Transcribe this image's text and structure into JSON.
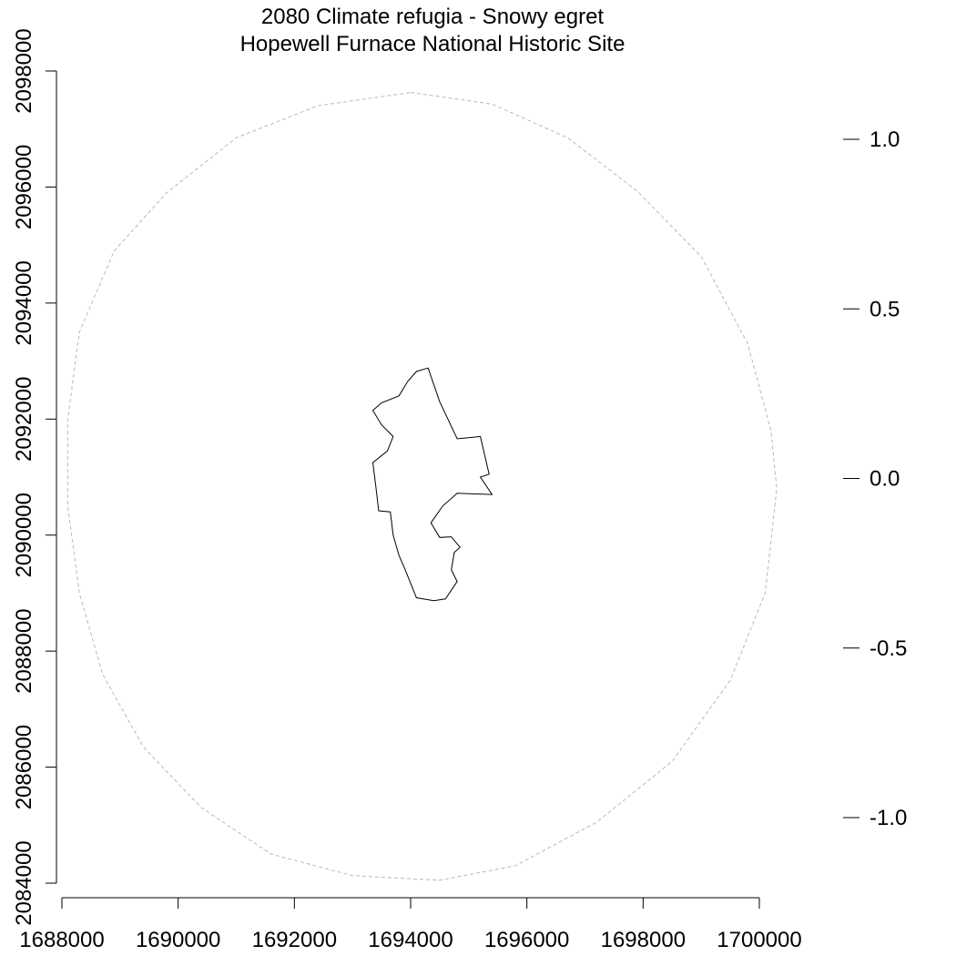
{
  "chart_data": {
    "type": "map",
    "title": [
      "2080 Climate refugia - Snowy egret",
      "Hopewell Furnace National Historic Site"
    ],
    "x_axis": {
      "range": [
        1688000,
        1700000
      ],
      "ticks": [
        1688000,
        1690000,
        1692000,
        1694000,
        1696000,
        1698000,
        1700000
      ],
      "tick_labels": [
        "1688000",
        "1690000",
        "1692000",
        "1694000",
        "1696000",
        "1698000",
        "1700000"
      ]
    },
    "y_axis": {
      "range": [
        2084000,
        2098000
      ],
      "ticks": [
        2084000,
        2086000,
        2088000,
        2090000,
        2092000,
        2094000,
        2096000,
        2098000
      ],
      "tick_labels": [
        "2084000",
        "2086000",
        "2088000",
        "2090000",
        "2092000",
        "2094000",
        "2096000",
        "2098000"
      ]
    },
    "legend_scale": {
      "ticks": [
        1.0,
        0.5,
        0.0,
        -0.5,
        -1.0
      ],
      "tick_labels": [
        "1.0",
        "0.5",
        "0.0",
        "-0.5",
        "-1.0"
      ]
    },
    "buffer_ring": {
      "style": "dashed",
      "color": "#b8b8b8",
      "points": [
        [
          1694000,
          2097630
        ],
        [
          1695400,
          2097430
        ],
        [
          1696700,
          2096850
        ],
        [
          1697900,
          2095930
        ],
        [
          1699000,
          2094800
        ],
        [
          1699800,
          2093300
        ],
        [
          1700200,
          2091800
        ],
        [
          1700300,
          2090800
        ],
        [
          1700100,
          2089000
        ],
        [
          1699500,
          2087500
        ],
        [
          1698500,
          2086100
        ],
        [
          1697200,
          2085050
        ],
        [
          1695800,
          2084300
        ],
        [
          1694500,
          2084050
        ],
        [
          1693000,
          2084130
        ],
        [
          1691600,
          2084500
        ],
        [
          1690400,
          2085300
        ],
        [
          1689400,
          2086350
        ],
        [
          1688700,
          2087600
        ],
        [
          1688300,
          2089000
        ],
        [
          1688100,
          2090500
        ],
        [
          1688100,
          2092000
        ],
        [
          1688300,
          2093500
        ],
        [
          1688900,
          2094900
        ],
        [
          1689800,
          2095900
        ],
        [
          1691000,
          2096850
        ],
        [
          1692400,
          2097400
        ]
      ]
    },
    "park_boundary": {
      "color": "#000000",
      "points": [
        [
          1693350,
          2092150
        ],
        [
          1693500,
          2092280
        ],
        [
          1693800,
          2092400
        ],
        [
          1693950,
          2092650
        ],
        [
          1694100,
          2092820
        ],
        [
          1694300,
          2092880
        ],
        [
          1694500,
          2092300
        ],
        [
          1694800,
          2091660
        ],
        [
          1695200,
          2091700
        ],
        [
          1695350,
          2091050
        ],
        [
          1695200,
          2091000
        ],
        [
          1695400,
          2090700
        ],
        [
          1694800,
          2090720
        ],
        [
          1694550,
          2090500
        ],
        [
          1694350,
          2090210
        ],
        [
          1694500,
          2089960
        ],
        [
          1694700,
          2089970
        ],
        [
          1694800,
          2089850
        ],
        [
          1694850,
          2089790
        ],
        [
          1694750,
          2089700
        ],
        [
          1694700,
          2089400
        ],
        [
          1694800,
          2089200
        ],
        [
          1694600,
          2088900
        ],
        [
          1694400,
          2088870
        ],
        [
          1694100,
          2088920
        ],
        [
          1693900,
          2089420
        ],
        [
          1693800,
          2089650
        ],
        [
          1693700,
          2090000
        ],
        [
          1693650,
          2090400
        ],
        [
          1693450,
          2090420
        ],
        [
          1693400,
          2090850
        ],
        [
          1693350,
          2091250
        ],
        [
          1693600,
          2091450
        ],
        [
          1693700,
          2091700
        ],
        [
          1693500,
          2091900
        ]
      ]
    }
  }
}
